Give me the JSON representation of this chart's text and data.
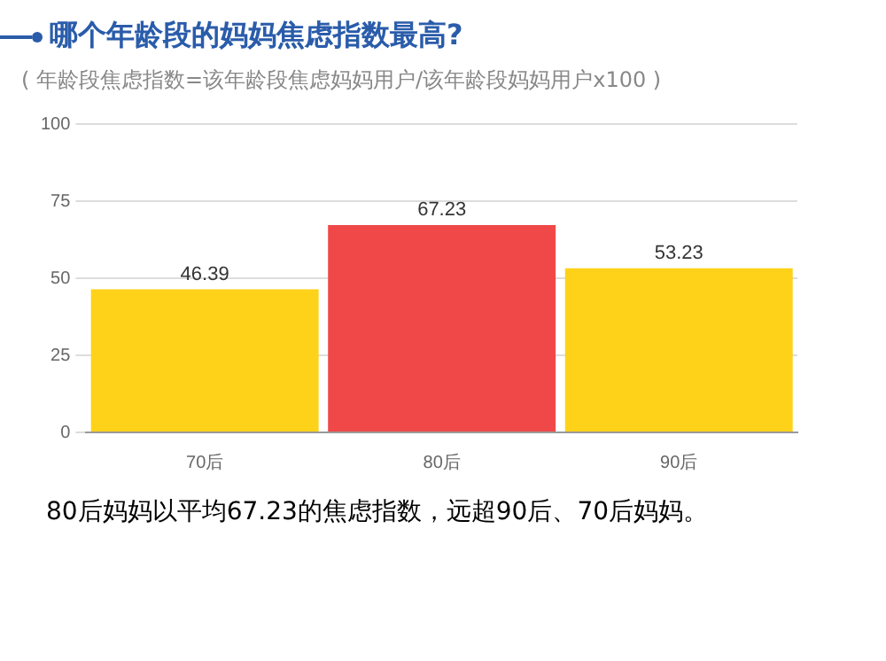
{
  "chart_data": {
    "type": "bar",
    "title": "哪个年龄段的妈妈焦虑指数最高?",
    "subtitle": "( 年龄段焦虑指数=该年龄段焦虑妈妈用户/该年龄段妈妈用户x100 )",
    "categories": [
      "70后",
      "80后",
      "90后"
    ],
    "values": [
      46.39,
      67.23,
      53.23
    ],
    "colors": [
      "#ffd21a",
      "#f04848",
      "#ffd21a"
    ],
    "ylim": [
      0,
      100
    ],
    "yticks": [
      0,
      25,
      50,
      75,
      100
    ],
    "grid": "y",
    "data_labels": true,
    "legend": false,
    "annotations": [
      "80后妈妈以平均67.23的焦虑指数，远超90后、70后妈妈。"
    ]
  }
}
